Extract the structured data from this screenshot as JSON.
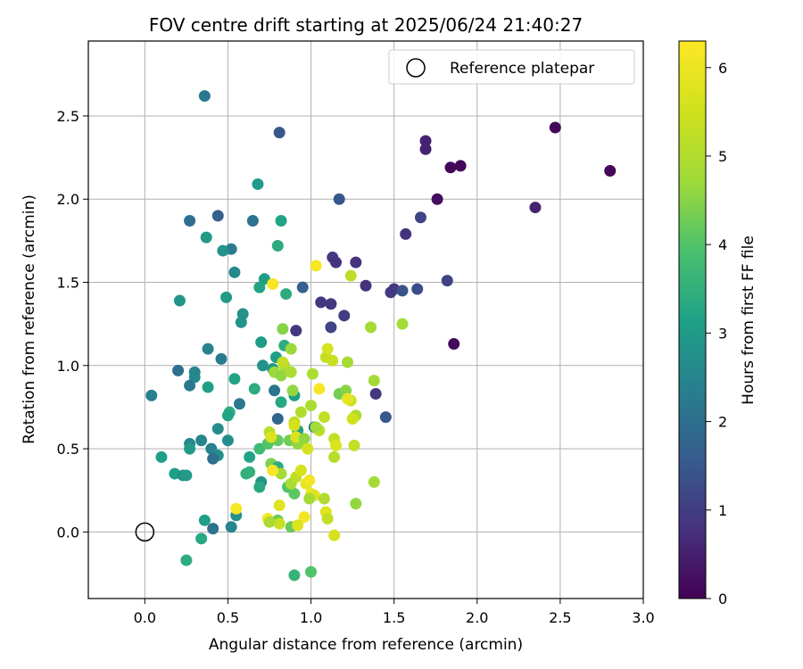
{
  "chart_data": {
    "type": "scatter",
    "title": "FOV centre drift starting at 2025/06/24 21:40:27",
    "xlabel": "Angular distance from reference (arcmin)",
    "ylabel": "Rotation from reference (arcmin)",
    "xlim": [
      -0.34,
      3.0
    ],
    "ylim": [
      -0.4,
      2.95
    ],
    "xticks": [
      "0.0",
      "0.5",
      "1.0",
      "1.5",
      "2.0",
      "2.5",
      "3.0"
    ],
    "yticks": [
      "0.0",
      "0.5",
      "1.0",
      "1.5",
      "2.0",
      "2.5"
    ],
    "grid": true,
    "legend": {
      "location": "top-right",
      "entries": [
        {
          "label": "Reference platepar",
          "marker": "open-circle"
        }
      ]
    },
    "reference": {
      "x": 0.0,
      "y": 0.0
    },
    "colorbar": {
      "label": "Hours from first FF file",
      "colormap": "viridis",
      "range": [
        0,
        6.3
      ],
      "ticks": [
        "0",
        "1",
        "2",
        "3",
        "4",
        "5",
        "6"
      ]
    },
    "points": [
      [
        2.47,
        2.43,
        0.1
      ],
      [
        2.8,
        2.17,
        0.1
      ],
      [
        1.9,
        2.2,
        0.1
      ],
      [
        1.84,
        2.19,
        0.1
      ],
      [
        1.76,
        2.0,
        0.2
      ],
      [
        1.86,
        1.13,
        0.15
      ],
      [
        2.35,
        1.95,
        0.55
      ],
      [
        1.69,
        2.35,
        0.55
      ],
      [
        1.69,
        2.3,
        0.55
      ],
      [
        1.57,
        1.79,
        0.8
      ],
      [
        1.66,
        1.89,
        1.1
      ],
      [
        1.82,
        1.51,
        1.1
      ],
      [
        1.48,
        1.44,
        1.0
      ],
      [
        1.5,
        1.46,
        0.9
      ],
      [
        1.55,
        1.45,
        1.4
      ],
      [
        1.64,
        1.46,
        1.3
      ],
      [
        1.45,
        0.69,
        1.5
      ],
      [
        1.39,
        0.83,
        0.9
      ],
      [
        1.33,
        1.48,
        0.8
      ],
      [
        1.27,
        1.62,
        0.8
      ],
      [
        1.13,
        1.65,
        0.9
      ],
      [
        1.15,
        1.62,
        0.8
      ],
      [
        1.06,
        1.38,
        0.9
      ],
      [
        1.12,
        1.37,
        0.9
      ],
      [
        1.2,
        1.3,
        1.0
      ],
      [
        1.12,
        1.23,
        1.1
      ],
      [
        0.91,
        1.21,
        0.9
      ],
      [
        1.17,
        2.0,
        1.5
      ],
      [
        0.81,
        2.4,
        1.5
      ],
      [
        0.36,
        2.62,
        2.2
      ],
      [
        0.44,
        1.9,
        1.7
      ],
      [
        0.27,
        1.87,
        2.0
      ],
      [
        0.65,
        1.87,
        2.1
      ],
      [
        0.52,
        1.7,
        2.3
      ],
      [
        0.37,
        1.77,
        3.0
      ],
      [
        0.47,
        1.69,
        2.8
      ],
      [
        0.54,
        1.56,
        2.6
      ],
      [
        0.68,
        2.09,
        3.0
      ],
      [
        0.82,
        1.87,
        3.2
      ],
      [
        0.8,
        1.72,
        3.4
      ],
      [
        0.95,
        1.47,
        1.7
      ],
      [
        0.85,
        1.43,
        3.4
      ],
      [
        0.72,
        1.52,
        3.1
      ],
      [
        0.69,
        1.47,
        3.2
      ],
      [
        0.21,
        1.39,
        2.9
      ],
      [
        0.49,
        1.41,
        3.0
      ],
      [
        0.59,
        1.31,
        2.8
      ],
      [
        0.58,
        1.26,
        2.8
      ],
      [
        0.38,
        1.1,
        2.5
      ],
      [
        0.3,
        0.96,
        2.5
      ],
      [
        0.3,
        0.93,
        2.6
      ],
      [
        0.2,
        0.97,
        2.0
      ],
      [
        0.46,
        1.04,
        2.3
      ],
      [
        0.27,
        0.88,
        2.2
      ],
      [
        0.38,
        0.87,
        3.1
      ],
      [
        0.04,
        0.82,
        2.4
      ],
      [
        0.7,
        1.14,
        3.0
      ],
      [
        0.71,
        1.0,
        2.8
      ],
      [
        0.77,
        0.98,
        2.9
      ],
      [
        0.79,
        1.05,
        3.1
      ],
      [
        0.84,
        1.12,
        3.4
      ],
      [
        0.78,
        0.85,
        2.1
      ],
      [
        0.66,
        0.86,
        3.4
      ],
      [
        0.54,
        0.92,
        3.2
      ],
      [
        0.57,
        0.77,
        2.2
      ],
      [
        0.51,
        0.72,
        3.4
      ],
      [
        0.5,
        0.7,
        3.2
      ],
      [
        0.8,
        0.68,
        1.8
      ],
      [
        0.82,
        0.78,
        3.3
      ],
      [
        0.9,
        0.82,
        3.1
      ],
      [
        0.92,
        0.61,
        3.1
      ],
      [
        1.02,
        0.63,
        2.4
      ],
      [
        0.44,
        0.62,
        2.7
      ],
      [
        0.27,
        0.53,
        2.6
      ],
      [
        0.34,
        0.55,
        2.5
      ],
      [
        0.27,
        0.5,
        3.0
      ],
      [
        0.4,
        0.5,
        2.4
      ],
      [
        0.5,
        0.55,
        2.7
      ],
      [
        0.44,
        0.46,
        2.7
      ],
      [
        0.41,
        0.44,
        2.0
      ],
      [
        0.1,
        0.45,
        3.1
      ],
      [
        0.18,
        0.35,
        3.1
      ],
      [
        0.23,
        0.34,
        2.7
      ],
      [
        0.25,
        0.34,
        3.0
      ],
      [
        0.63,
        0.45,
        3.2
      ],
      [
        0.63,
        0.36,
        3.5
      ],
      [
        0.61,
        0.35,
        3.5
      ],
      [
        0.7,
        0.3,
        2.8
      ],
      [
        0.69,
        0.27,
        3.3
      ],
      [
        0.69,
        0.5,
        3.8
      ],
      [
        0.76,
        0.41,
        4.4
      ],
      [
        0.8,
        0.39,
        3.4
      ],
      [
        0.74,
        0.53,
        4.0
      ],
      [
        0.8,
        0.55,
        4.2
      ],
      [
        0.86,
        0.27,
        4.0
      ],
      [
        0.87,
        0.55,
        4.3
      ],
      [
        0.92,
        0.53,
        4.6
      ],
      [
        0.9,
        0.23,
        4.1
      ],
      [
        0.55,
        0.1,
        2.8
      ],
      [
        0.52,
        0.03,
        2.5
      ],
      [
        0.36,
        0.07,
        3.1
      ],
      [
        0.41,
        0.02,
        2.1
      ],
      [
        0.34,
        -0.04,
        3.3
      ],
      [
        0.25,
        -0.17,
        3.4
      ],
      [
        0.8,
        0.07,
        4.2
      ],
      [
        0.9,
        -0.26,
        3.6
      ],
      [
        1.0,
        -0.24,
        4.0
      ],
      [
        0.88,
        0.03,
        4.2
      ],
      [
        0.83,
        1.22,
        4.5
      ],
      [
        0.88,
        1.1,
        4.7
      ],
      [
        0.84,
        1.0,
        4.9
      ],
      [
        0.83,
        1.02,
        5.3
      ],
      [
        0.78,
        0.96,
        4.7
      ],
      [
        0.82,
        0.94,
        4.6
      ],
      [
        0.88,
        0.96,
        4.9
      ],
      [
        1.01,
        0.95,
        4.9
      ],
      [
        1.09,
        1.05,
        5.3
      ],
      [
        1.1,
        1.1,
        5.6
      ],
      [
        1.13,
        1.03,
        5.4
      ],
      [
        1.22,
        1.02,
        4.8
      ],
      [
        1.36,
        1.23,
        4.8
      ],
      [
        1.55,
        1.25,
        4.8
      ],
      [
        1.24,
        1.54,
        5.2
      ],
      [
        1.03,
        1.6,
        6.2
      ],
      [
        0.77,
        1.49,
        6.2
      ],
      [
        0.89,
        0.85,
        4.6
      ],
      [
        1.0,
        0.76,
        4.9
      ],
      [
        0.94,
        0.72,
        5.0
      ],
      [
        1.08,
        0.69,
        5.3
      ],
      [
        1.17,
        0.83,
        4.3
      ],
      [
        1.21,
        0.85,
        4.5
      ],
      [
        1.24,
        0.79,
        5.4
      ],
      [
        1.22,
        0.8,
        5.9
      ],
      [
        1.05,
        0.86,
        6.2
      ],
      [
        1.27,
        0.7,
        5.0
      ],
      [
        1.25,
        0.68,
        5.5
      ],
      [
        1.38,
        0.91,
        4.8
      ],
      [
        1.26,
        0.52,
        5.3
      ],
      [
        1.14,
        0.56,
        5.3
      ],
      [
        1.15,
        0.52,
        5.7
      ],
      [
        1.14,
        0.45,
        5.1
      ],
      [
        1.05,
        0.61,
        5.2
      ],
      [
        1.03,
        0.63,
        4.8
      ],
      [
        0.9,
        0.66,
        5.2
      ],
      [
        0.9,
        0.64,
        5.6
      ],
      [
        0.91,
        0.57,
        5.7
      ],
      [
        0.96,
        0.56,
        4.6
      ],
      [
        0.98,
        0.5,
        5.6
      ],
      [
        0.75,
        0.6,
        5.1
      ],
      [
        0.76,
        0.57,
        5.7
      ],
      [
        0.82,
        0.35,
        4.8
      ],
      [
        0.88,
        0.29,
        4.9
      ],
      [
        0.91,
        0.33,
        5.2
      ],
      [
        0.77,
        0.37,
        6.2
      ],
      [
        0.94,
        0.37,
        5.6
      ],
      [
        0.97,
        0.29,
        5.9
      ],
      [
        0.99,
        0.31,
        6.1
      ],
      [
        1.0,
        0.23,
        6.0
      ],
      [
        1.02,
        0.22,
        5.8
      ],
      [
        1.08,
        0.2,
        5.0
      ],
      [
        0.99,
        0.2,
        4.8
      ],
      [
        1.09,
        0.12,
        5.8
      ],
      [
        1.1,
        0.08,
        5.3
      ],
      [
        0.96,
        0.09,
        6.1
      ],
      [
        0.92,
        0.04,
        5.7
      ],
      [
        0.81,
        0.05,
        5.4
      ],
      [
        0.81,
        0.16,
        5.8
      ],
      [
        0.74,
        0.08,
        6.2
      ],
      [
        0.55,
        0.14,
        6.2
      ],
      [
        1.14,
        -0.02,
        5.6
      ],
      [
        1.27,
        0.17,
        4.6
      ],
      [
        1.38,
        0.3,
        4.8
      ],
      [
        0.75,
        0.06,
        4.9
      ]
    ]
  }
}
